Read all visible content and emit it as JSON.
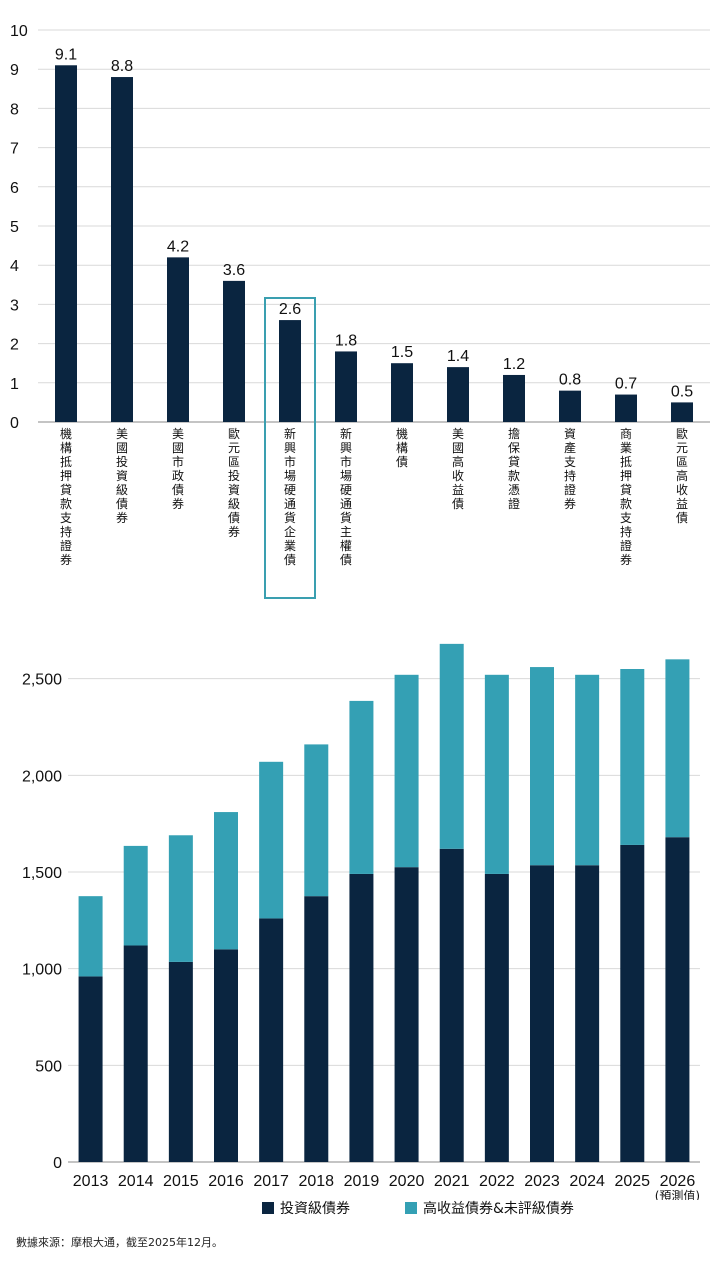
{
  "chart_data": [
    {
      "type": "bar",
      "categories": [
        "機構抵押貸款支持證券",
        "美國投資級債券",
        "美國市政債券",
        "歐元區投資級債券",
        "新興市場硬通貨企業債",
        "新興市場硬通貨主權債",
        "機構債",
        "美國高收益債",
        "擔保貸款憑證",
        "資產支持證券",
        "商業抵押貸款支持證券",
        "歐元區高收益債"
      ],
      "values": [
        9.1,
        8.8,
        4.2,
        3.6,
        2.6,
        1.8,
        1.5,
        1.4,
        1.2,
        0.8,
        0.7,
        0.5
      ],
      "value_labels": [
        "9.1",
        "8.8",
        "4.2",
        "3.6",
        "2.6",
        "1.8",
        "1.5",
        "1.4",
        "1.2",
        "0.8",
        "0.7",
        "0.5"
      ],
      "ylim": [
        0,
        10
      ],
      "yticks": [
        "0",
        "1",
        "2",
        "3",
        "4",
        "5",
        "6",
        "7",
        "8",
        "9",
        "10"
      ],
      "highlight_index": 4,
      "grid": true,
      "colors": {
        "bar": "#0a2540",
        "highlight_box": "#3a9fb0",
        "grid": "#d9d9d9"
      }
    },
    {
      "type": "bar",
      "stacked": true,
      "categories": [
        "2013",
        "2014",
        "2015",
        "2016",
        "2017",
        "2018",
        "2019",
        "2020",
        "2021",
        "2022",
        "2023",
        "2024",
        "2025",
        "2026"
      ],
      "category_note": {
        "index": 13,
        "text": "(預測值)"
      },
      "series": [
        {
          "name": "投資級債券",
          "color": "#0a2540",
          "values": [
            960,
            1120,
            1035,
            1100,
            1260,
            1375,
            1490,
            1525,
            1620,
            1490,
            1535,
            1535,
            1640,
            1680
          ]
        },
        {
          "name": "高收益債券&未評級債券",
          "color": "#34a0b4",
          "values": [
            415,
            515,
            655,
            710,
            810,
            785,
            895,
            995,
            1060,
            1030,
            1025,
            985,
            910,
            920
          ]
        }
      ],
      "ylim": [
        0,
        2700
      ],
      "yticks": [
        {
          "value": 0,
          "label": "0"
        },
        {
          "value": 500,
          "label": "500"
        },
        {
          "value": 1000,
          "label": "1,000"
        },
        {
          "value": 1500,
          "label": "1,500"
        },
        {
          "value": 2000,
          "label": "2,000"
        },
        {
          "value": 2500,
          "label": "2,500"
        }
      ],
      "legend_position": "bottom",
      "grid": true
    }
  ],
  "source": "數據來源：摩根大通，截至2025年12月。"
}
